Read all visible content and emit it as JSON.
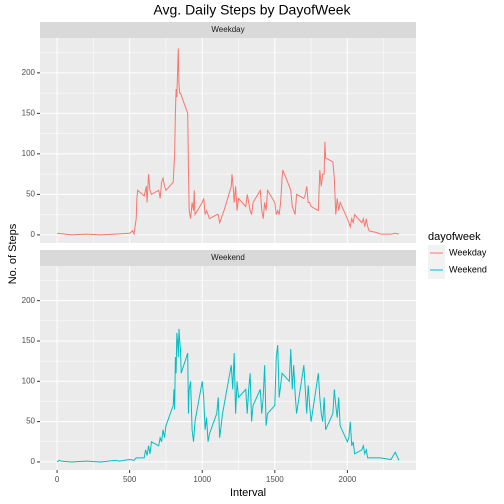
{
  "chart_data": {
    "type": "line",
    "title": "Avg. Daily Steps by DayofWeek",
    "x_label": "Interval",
    "y_label": "No. of Steps",
    "legend_title": "dayofweek",
    "xlim": [
      -117.75,
      2472.75
    ],
    "ylim": [
      -10,
      243
    ],
    "xticks": [
      0,
      500,
      1000,
      1500,
      2000
    ],
    "yticks": [
      0,
      50,
      100,
      150,
      200
    ],
    "xminorticks": [
      250,
      750,
      1250,
      1750,
      2250
    ],
    "yminorticks": [
      25,
      75,
      125,
      175,
      225
    ],
    "grid": true,
    "legend": "right",
    "series": [
      {
        "name": "Weekday",
        "color": "#F8766D",
        "x": [
          0,
          100,
          200,
          300,
          400,
          500,
          520,
          530,
          545,
          550,
          555,
          600,
          615,
          620,
          630,
          640,
          650,
          700,
          710,
          720,
          730,
          740,
          750,
          800,
          810,
          815,
          820,
          825,
          830,
          835,
          840,
          845,
          850,
          900,
          905,
          910,
          920,
          930,
          940,
          945,
          950,
          1000,
          1010,
          1020,
          1030,
          1040,
          1050,
          1100,
          1110,
          1120,
          1130,
          1140,
          1150,
          1200,
          1205,
          1210,
          1215,
          1220,
          1230,
          1240,
          1250,
          1300,
          1310,
          1320,
          1330,
          1340,
          1350,
          1400,
          1410,
          1420,
          1430,
          1440,
          1450,
          1500,
          1510,
          1520,
          1530,
          1540,
          1550,
          1555,
          1600,
          1610,
          1620,
          1630,
          1640,
          1650,
          1700,
          1710,
          1720,
          1730,
          1740,
          1750,
          1800,
          1810,
          1820,
          1830,
          1840,
          1845,
          1850,
          1900,
          1910,
          1920,
          1930,
          1940,
          1950,
          2000,
          2010,
          2020,
          2030,
          2040,
          2050,
          2100,
          2110,
          2120,
          2130,
          2140,
          2150,
          2200,
          2230,
          2300,
          2330,
          2355
        ],
        "values": [
          2,
          0,
          1,
          0,
          1,
          2,
          5,
          1,
          20,
          45,
          55,
          48,
          60,
          40,
          75,
          55,
          50,
          55,
          45,
          65,
          70,
          60,
          55,
          65,
          100,
          150,
          180,
          170,
          200,
          230,
          185,
          175,
          175,
          150,
          80,
          30,
          20,
          40,
          30,
          55,
          25,
          40,
          45,
          25,
          30,
          25,
          20,
          25,
          25,
          15,
          20,
          25,
          30,
          60,
          75,
          65,
          55,
          40,
          60,
          30,
          45,
          35,
          50,
          40,
          30,
          25,
          40,
          55,
          30,
          20,
          40,
          30,
          55,
          40,
          25,
          30,
          25,
          40,
          70,
          80,
          60,
          55,
          35,
          30,
          25,
          50,
          45,
          50,
          60,
          40,
          40,
          35,
          30,
          80,
          60,
          75,
          75,
          115,
          95,
          90,
          70,
          25,
          45,
          30,
          40,
          20,
          15,
          10,
          20,
          15,
          25,
          15,
          20,
          10,
          20,
          10,
          5,
          3,
          1,
          1,
          2,
          1
        ]
      },
      {
        "name": "Weekend",
        "color": "#00BFC4",
        "x": [
          0,
          15,
          30,
          100,
          200,
          300,
          400,
          430,
          500,
          530,
          545,
          600,
          610,
          620,
          630,
          640,
          650,
          700,
          710,
          720,
          730,
          740,
          750,
          800,
          805,
          810,
          815,
          820,
          825,
          830,
          835,
          840,
          845,
          850,
          855,
          900,
          905,
          910,
          920,
          930,
          940,
          950,
          1000,
          1010,
          1020,
          1030,
          1040,
          1050,
          1100,
          1110,
          1120,
          1130,
          1140,
          1150,
          1200,
          1210,
          1220,
          1230,
          1240,
          1250,
          1300,
          1310,
          1320,
          1330,
          1340,
          1350,
          1400,
          1410,
          1420,
          1430,
          1440,
          1450,
          1500,
          1510,
          1520,
          1530,
          1540,
          1550,
          1600,
          1610,
          1620,
          1630,
          1640,
          1650,
          1700,
          1710,
          1720,
          1730,
          1740,
          1750,
          1800,
          1810,
          1820,
          1830,
          1840,
          1850,
          1900,
          1910,
          1920,
          1930,
          1940,
          1950,
          2000,
          2010,
          2020,
          2030,
          2040,
          2050,
          2100,
          2110,
          2120,
          2130,
          2140,
          2200,
          2230,
          2300,
          2330,
          2355
        ],
        "values": [
          0,
          2,
          1,
          0,
          1,
          0,
          2,
          1,
          3,
          2,
          5,
          5,
          15,
          8,
          20,
          10,
          25,
          20,
          30,
          25,
          40,
          30,
          45,
          70,
          90,
          65,
          130,
          110,
          160,
          150,
          130,
          165,
          150,
          140,
          110,
          135,
          60,
          90,
          100,
          40,
          25,
          50,
          100,
          80,
          40,
          55,
          25,
          35,
          60,
          80,
          30,
          45,
          60,
          70,
          120,
          90,
          135,
          60,
          100,
          80,
          90,
          60,
          90,
          110,
          50,
          70,
          90,
          60,
          80,
          120,
          45,
          60,
          70,
          130,
          145,
          80,
          95,
          110,
          100,
          140,
          90,
          120,
          85,
          60,
          120,
          90,
          60,
          95,
          70,
          50,
          110,
          80,
          60,
          50,
          80,
          40,
          60,
          90,
          70,
          55,
          80,
          45,
          25,
          30,
          50,
          20,
          25,
          10,
          15,
          20,
          10,
          15,
          5,
          5,
          5,
          3,
          12,
          2
        ]
      }
    ]
  }
}
